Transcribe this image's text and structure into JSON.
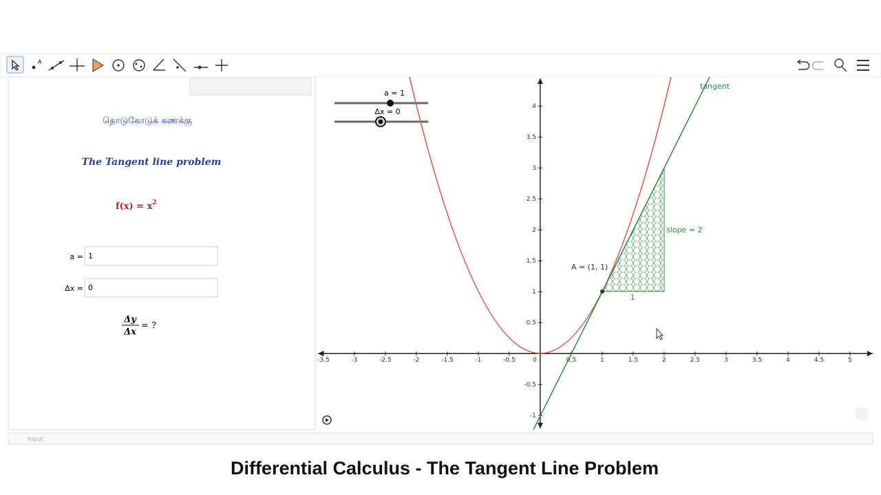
{
  "algebra": {
    "title_tamil": "தொடுகோடுக் கணக்கு",
    "title_en": "The Tangent line problem",
    "function": {
      "base": "f(x) = x",
      "exponent": "2"
    },
    "inputs": [
      {
        "label": "a =",
        "value": "1"
      },
      {
        "label": "Δx =",
        "value": "0"
      }
    ],
    "ratio": {
      "numerator": "Δy",
      "denominator": "Δx",
      "rhs": "= ?"
    }
  },
  "graphics": {
    "xlim": [
      -3.61,
      5.39
    ],
    "ylim": [
      -1.23,
      4.47
    ],
    "xticks": [
      -3.5,
      -3,
      -2.5,
      -2,
      -1.5,
      -1,
      -0.5,
      0,
      0.5,
      1,
      1.5,
      2,
      2.5,
      3,
      3.5,
      4,
      4.5,
      5
    ],
    "yticks": [
      -1,
      -0.5,
      0.5,
      1,
      1.5,
      2,
      2.5,
      3,
      3.5,
      4
    ],
    "sliders": [
      "a = 1",
      "Δx = 0"
    ],
    "labels": {
      "tangent": "tangent",
      "point": "A = (1, 1)",
      "slope": "slope = 2",
      "run": "1"
    }
  },
  "input_bar": {
    "placeholder": "Input"
  },
  "caption": "Differential Calculus - The Tangent Line Problem"
}
